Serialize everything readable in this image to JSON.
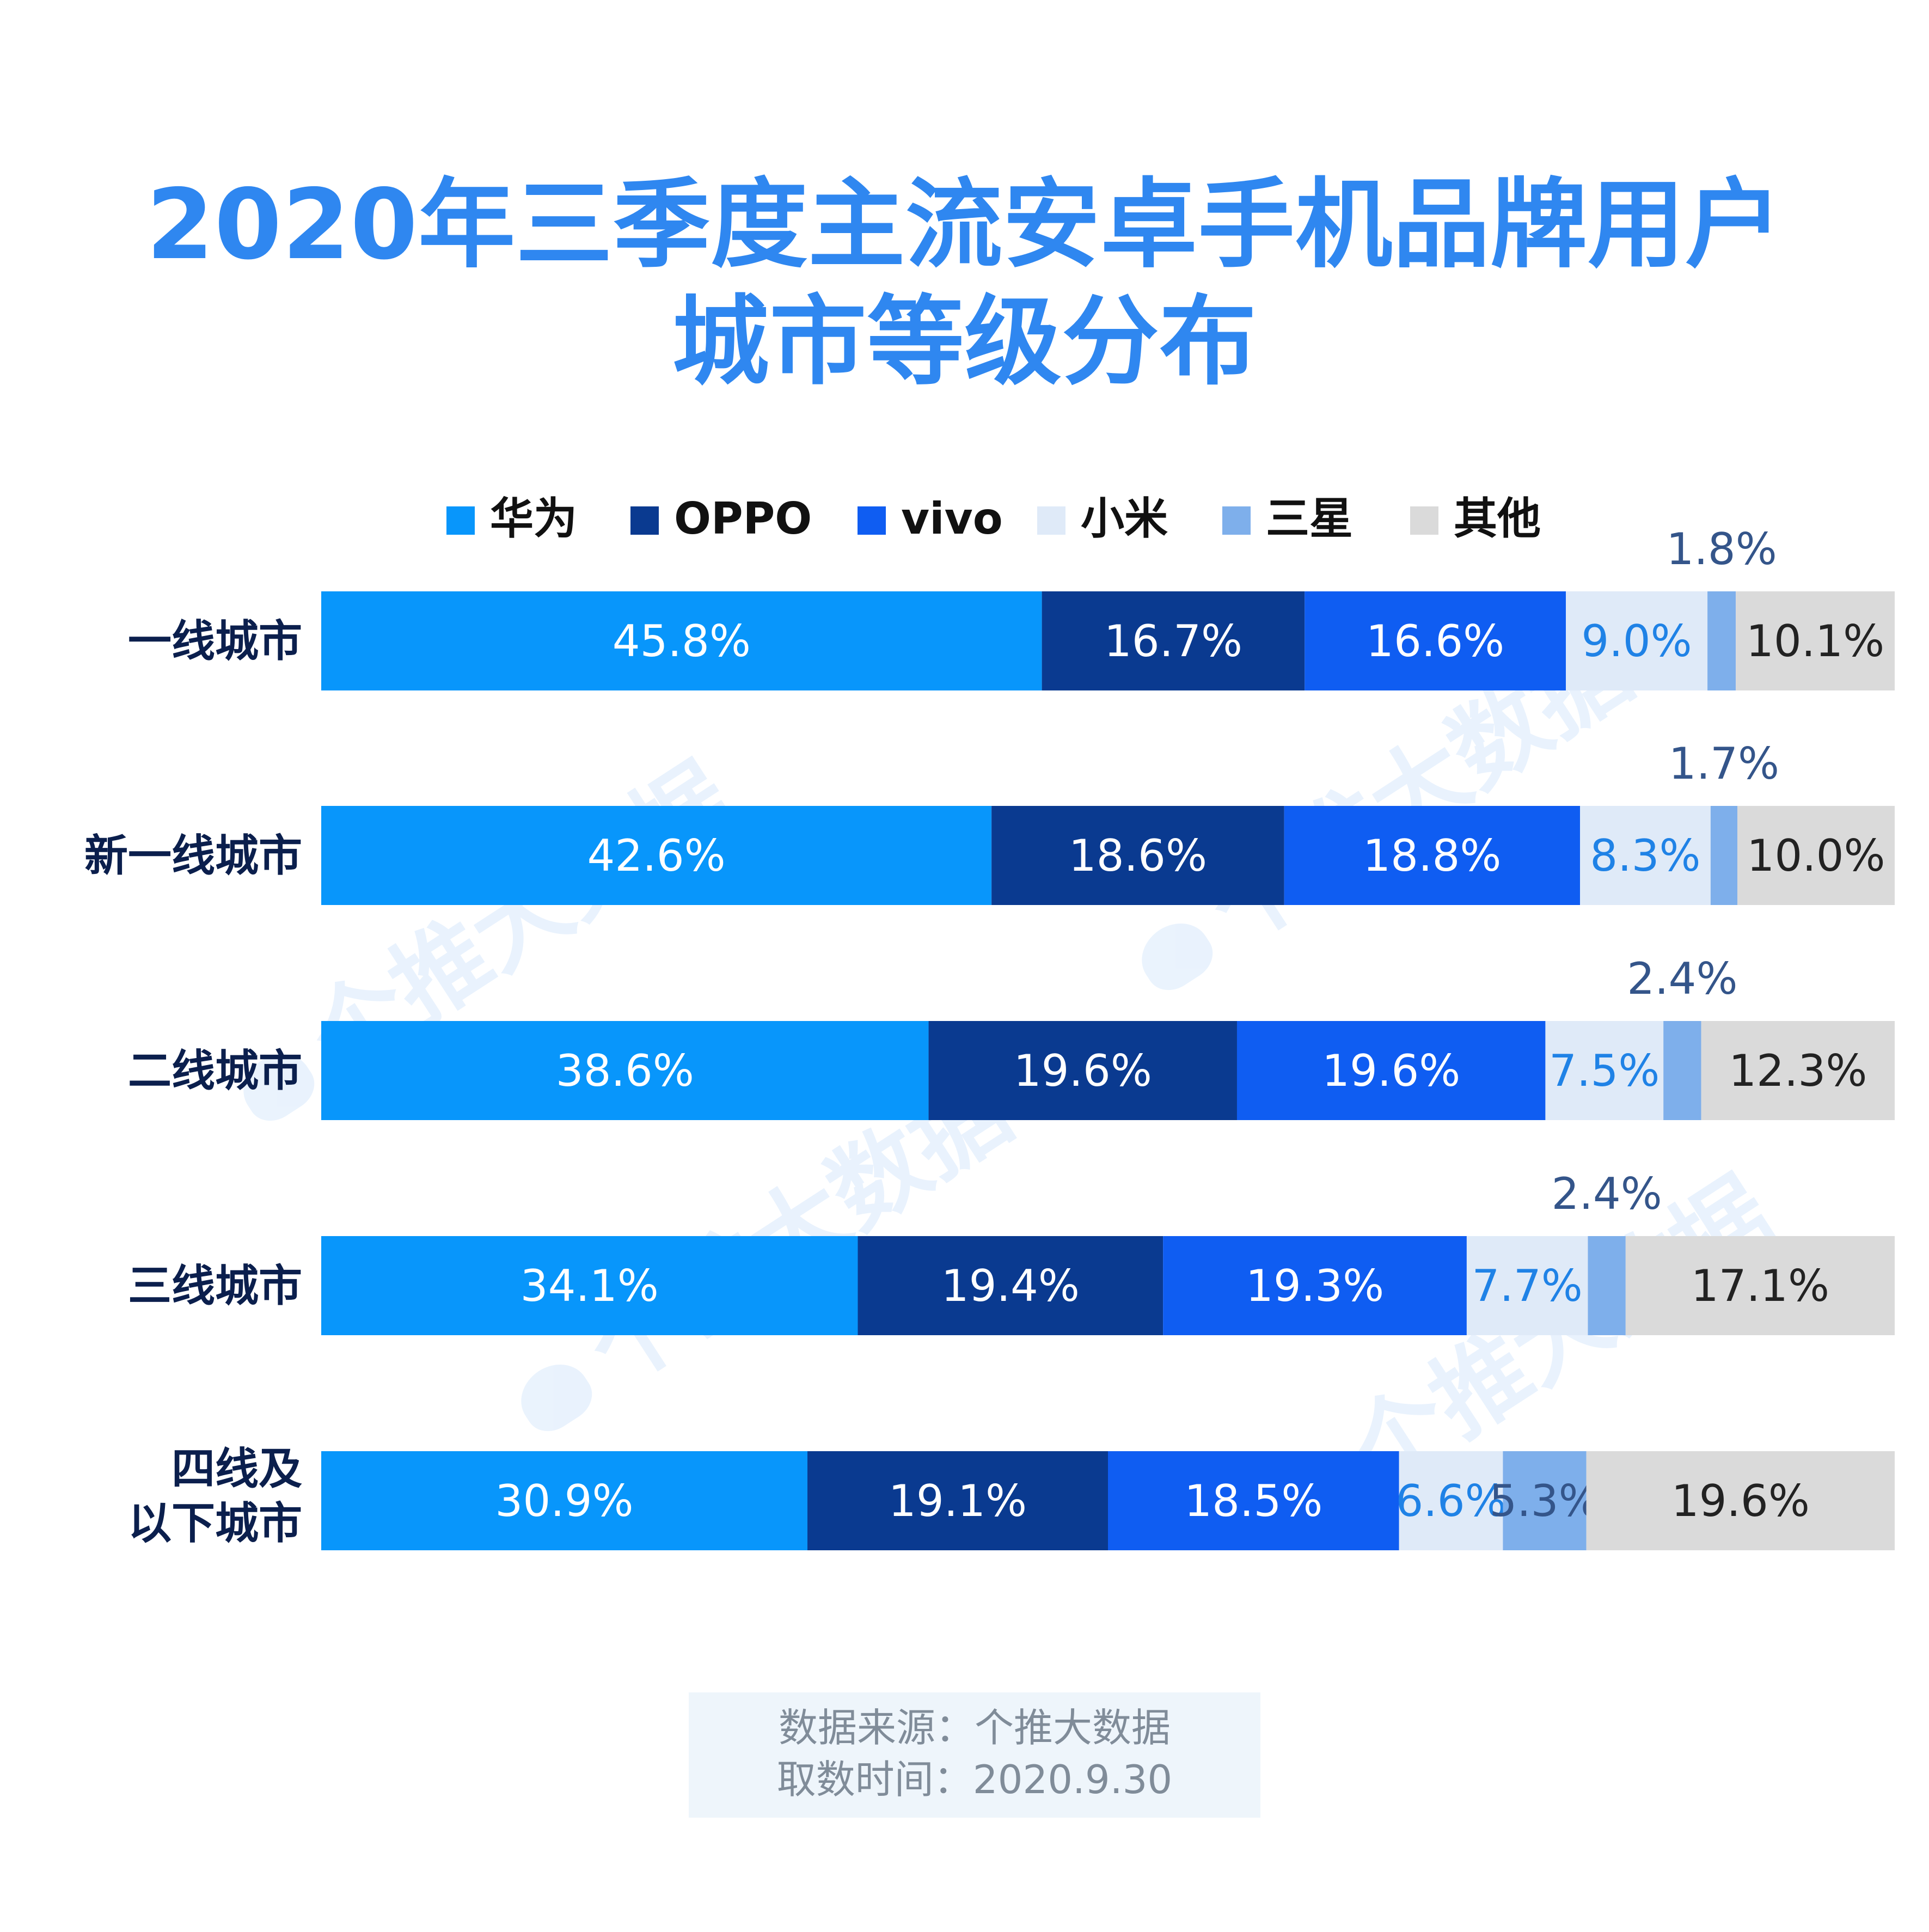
{
  "title": "2020年三季度主流安卓手机品牌用户城市等级分布",
  "title_lines": [
    "2020年三季度主流安卓手机品牌用户",
    "城市等级分布"
  ],
  "watermark": "个推大数据",
  "source": {
    "line1": "数据来源：个推大数据",
    "line2": "取数时间：2020.9.30"
  },
  "chart_data": {
    "type": "bar",
    "orientation": "horizontal",
    "stacked": true,
    "title": "2020年三季度主流安卓手机品牌用户城市等级分布",
    "unit": "%",
    "legend_position": "top-center",
    "categories": [
      "一线城市",
      "新一线城市",
      "二线城市",
      "三线城市",
      "四线及以下城市"
    ],
    "category_lines": [
      [
        "一线城市"
      ],
      [
        "新一线城市"
      ],
      [
        "二线城市"
      ],
      [
        "三线城市"
      ],
      [
        "四线及",
        "以下城市"
      ]
    ],
    "series": [
      {
        "name": "华为",
        "color": "#0896fb",
        "label_color": "#ffffff",
        "values": [
          45.8,
          42.6,
          38.6,
          34.1,
          30.9
        ]
      },
      {
        "name": "OPPO",
        "color": "#0a3a90",
        "label_color": "#ffffff",
        "values": [
          16.7,
          18.6,
          19.6,
          19.4,
          19.1
        ]
      },
      {
        "name": "vivo",
        "color": "#0f5df2",
        "label_color": "#ffffff",
        "values": [
          16.6,
          18.8,
          19.6,
          19.3,
          18.5
        ]
      },
      {
        "name": "小米",
        "color": "#dfeaf8",
        "label_color": "#1f82e6",
        "values": [
          9.0,
          8.3,
          7.5,
          7.7,
          6.6
        ]
      },
      {
        "name": "三星",
        "color": "#7eafeb",
        "label_color": "#34558a",
        "values": [
          1.8,
          1.7,
          2.4,
          2.4,
          5.3
        ]
      },
      {
        "name": "其他",
        "color": "#dadada",
        "label_color": "#222222",
        "values": [
          10.1,
          10.0,
          12.3,
          17.1,
          19.6
        ]
      }
    ]
  }
}
